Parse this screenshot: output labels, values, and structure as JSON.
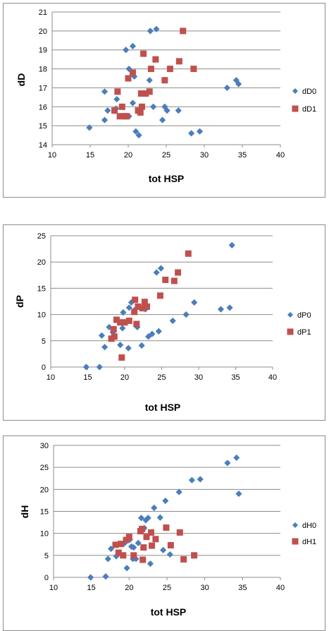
{
  "colors": {
    "series0": "#4a7ebb",
    "series1": "#c0504d",
    "grid": "#8c8c8c"
  },
  "chart_data": [
    {
      "type": "scatter",
      "xlabel": "tot HSP",
      "ylabel": "dD",
      "xlim": [
        10,
        40
      ],
      "xticks": [
        10,
        15,
        20,
        25,
        30,
        35,
        40
      ],
      "ylim": [
        14,
        21
      ],
      "yticks": [
        14,
        15,
        16,
        17,
        18,
        19,
        20,
        21
      ],
      "grid": "horizontal",
      "legend": "right",
      "series": [
        {
          "name": "dD0",
          "marker": "diamond",
          "points": [
            [
              14.9,
              14.9
            ],
            [
              16.9,
              15.3
            ],
            [
              17.3,
              15.8
            ],
            [
              18.4,
              15.9
            ],
            [
              20.1,
              15.5
            ],
            [
              21.0,
              14.7
            ],
            [
              21.4,
              14.5
            ],
            [
              16.9,
              16.8
            ],
            [
              18.5,
              16.4
            ],
            [
              19.7,
              19.0
            ],
            [
              20.1,
              18.0
            ],
            [
              20.6,
              19.2
            ],
            [
              20.8,
              17.6
            ],
            [
              20.6,
              16.2
            ],
            [
              22.8,
              17.4
            ],
            [
              22.9,
              20.0
            ],
            [
              23.3,
              16.0
            ],
            [
              23.7,
              20.1
            ],
            [
              24.5,
              15.3
            ],
            [
              24.8,
              16.0
            ],
            [
              25.1,
              15.8
            ],
            [
              26.6,
              15.8
            ],
            [
              28.3,
              14.6
            ],
            [
              29.4,
              14.7
            ],
            [
              33.0,
              17.0
            ],
            [
              34.2,
              17.4
            ],
            [
              34.5,
              17.2
            ]
          ]
        },
        {
          "name": "dD1",
          "marker": "square",
          "points": [
            [
              18.2,
              15.8
            ],
            [
              18.6,
              16.8
            ],
            [
              18.9,
              15.5
            ],
            [
              19.2,
              16.0
            ],
            [
              19.5,
              15.5
            ],
            [
              19.8,
              15.5
            ],
            [
              20.0,
              17.5
            ],
            [
              20.6,
              17.8
            ],
            [
              21.3,
              15.8
            ],
            [
              21.6,
              15.7
            ],
            [
              21.8,
              16.0
            ],
            [
              21.7,
              16.7
            ],
            [
              22.0,
              18.8
            ],
            [
              22.3,
              16.7
            ],
            [
              22.8,
              16.8
            ],
            [
              23.0,
              18.0
            ],
            [
              23.6,
              18.5
            ],
            [
              24.8,
              17.4
            ],
            [
              25.5,
              18.0
            ],
            [
              26.7,
              18.4
            ],
            [
              27.2,
              20.0
            ],
            [
              28.6,
              18.0
            ]
          ]
        }
      ]
    },
    {
      "type": "scatter",
      "xlabel": "tot HSP",
      "ylabel": "dP",
      "xlim": [
        10,
        40
      ],
      "xticks": [
        10,
        15,
        20,
        25,
        30,
        35,
        40
      ],
      "ylim": [
        0,
        25
      ],
      "yticks": [
        0,
        5,
        10,
        15,
        20,
        25
      ],
      "grid": "horizontal",
      "legend": "right",
      "series": [
        {
          "name": "dP0",
          "marker": "diamond",
          "points": [
            [
              14.8,
              0.0
            ],
            [
              16.6,
              0.0
            ],
            [
              16.9,
              6.0
            ],
            [
              17.3,
              3.8
            ],
            [
              17.9,
              7.6
            ],
            [
              18.4,
              6.6
            ],
            [
              19.4,
              4.2
            ],
            [
              19.7,
              7.4
            ],
            [
              19.8,
              10.4
            ],
            [
              20.2,
              8.5
            ],
            [
              20.5,
              3.6
            ],
            [
              20.6,
              11.3
            ],
            [
              20.9,
              12.3
            ],
            [
              21.3,
              10.8
            ],
            [
              21.7,
              7.6
            ],
            [
              22.3,
              4.1
            ],
            [
              22.8,
              11.0
            ],
            [
              23.2,
              5.8
            ],
            [
              23.7,
              6.3
            ],
            [
              24.3,
              18.0
            ],
            [
              24.6,
              6.8
            ],
            [
              24.9,
              18.8
            ],
            [
              26.5,
              8.8
            ],
            [
              28.3,
              10.0
            ],
            [
              29.4,
              12.3
            ],
            [
              33.0,
              11.0
            ],
            [
              34.2,
              11.3
            ],
            [
              34.5,
              23.2
            ]
          ]
        },
        {
          "name": "dP1",
          "marker": "square",
          "points": [
            [
              18.2,
              5.4
            ],
            [
              18.5,
              7.2
            ],
            [
              18.6,
              5.8
            ],
            [
              18.9,
              9.0
            ],
            [
              19.4,
              8.5
            ],
            [
              19.6,
              1.8
            ],
            [
              20.0,
              8.5
            ],
            [
              20.6,
              8.8
            ],
            [
              21.3,
              10.5
            ],
            [
              21.4,
              12.8
            ],
            [
              21.6,
              8.2
            ],
            [
              21.8,
              11.5
            ],
            [
              22.4,
              11.2
            ],
            [
              22.7,
              12.4
            ],
            [
              23.0,
              11.5
            ],
            [
              24.8,
              13.6
            ],
            [
              25.5,
              16.6
            ],
            [
              26.7,
              16.4
            ],
            [
              27.2,
              18.0
            ],
            [
              28.6,
              21.6
            ]
          ]
        }
      ]
    },
    {
      "type": "scatter",
      "xlabel": "tot HSP",
      "ylabel": "dH",
      "xlim": [
        10,
        40
      ],
      "xticks": [
        10,
        15,
        20,
        25,
        30,
        35,
        40
      ],
      "ylim": [
        0,
        30
      ],
      "yticks": [
        0,
        5,
        10,
        15,
        20,
        25,
        30
      ],
      "grid": "horizontal",
      "legend": "right",
      "series": [
        {
          "name": "dH0",
          "marker": "diamond",
          "points": [
            [
              14.9,
              0.0
            ],
            [
              16.9,
              0.2
            ],
            [
              17.2,
              4.2
            ],
            [
              17.6,
              6.5
            ],
            [
              18.3,
              4.8
            ],
            [
              19.4,
              7.8
            ],
            [
              19.7,
              2.1
            ],
            [
              20.1,
              8.6
            ],
            [
              20.3,
              7.0
            ],
            [
              20.5,
              4.2
            ],
            [
              20.6,
              6.8
            ],
            [
              20.9,
              4.2
            ],
            [
              21.2,
              7.8
            ],
            [
              21.6,
              13.5
            ],
            [
              22.0,
              11.2
            ],
            [
              22.2,
              13.0
            ],
            [
              22.5,
              13.5
            ],
            [
              22.8,
              3.1
            ],
            [
              23.3,
              15.8
            ],
            [
              24.1,
              13.6
            ],
            [
              24.5,
              6.2
            ],
            [
              24.8,
              17.4
            ],
            [
              25.4,
              5.2
            ],
            [
              26.6,
              19.4
            ],
            [
              28.3,
              22.1
            ],
            [
              29.4,
              22.3
            ],
            [
              33.0,
              26.0
            ],
            [
              34.2,
              27.2
            ],
            [
              34.5,
              19.0
            ]
          ]
        },
        {
          "name": "dH1",
          "marker": "square",
          "points": [
            [
              18.2,
              7.4
            ],
            [
              18.6,
              5.6
            ],
            [
              18.9,
              7.6
            ],
            [
              19.2,
              5.0
            ],
            [
              19.6,
              8.5
            ],
            [
              20.0,
              9.2
            ],
            [
              20.6,
              5.0
            ],
            [
              21.5,
              10.5
            ],
            [
              21.7,
              11.0
            ],
            [
              21.9,
              6.8
            ],
            [
              21.8,
              4.0
            ],
            [
              22.3,
              9.2
            ],
            [
              22.9,
              10.2
            ],
            [
              23.0,
              7.2
            ],
            [
              23.5,
              8.7
            ],
            [
              24.9,
              11.3
            ],
            [
              25.5,
              7.3
            ],
            [
              26.7,
              10.2
            ],
            [
              27.2,
              4.1
            ],
            [
              28.6,
              5.0
            ]
          ]
        }
      ]
    }
  ]
}
